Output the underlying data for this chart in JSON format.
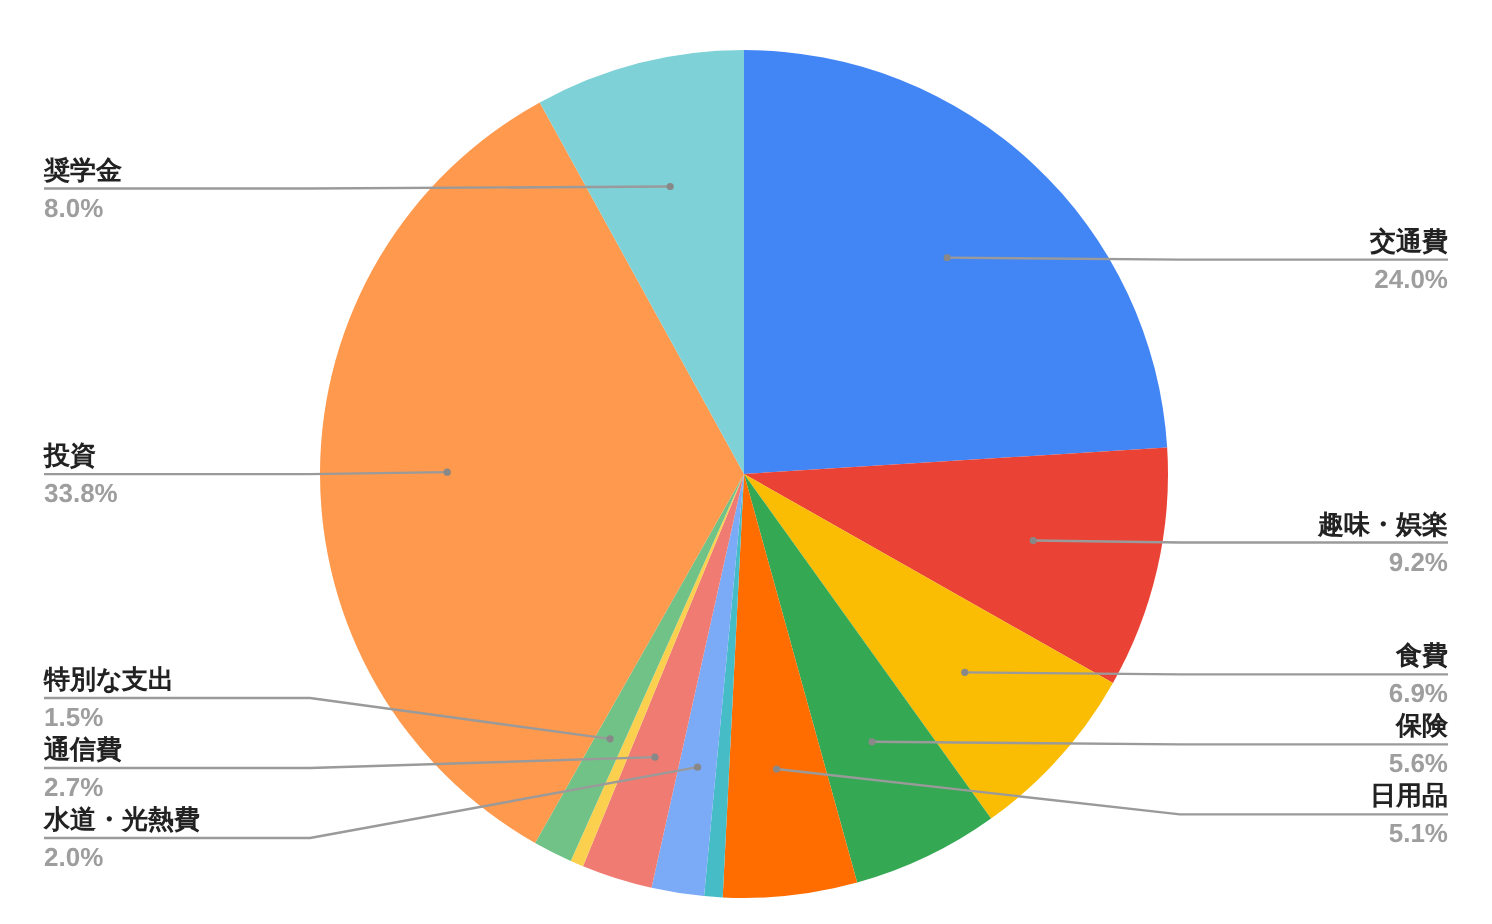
{
  "chart_data": {
    "type": "pie",
    "categories": [
      "交通費",
      "趣味・娯楽",
      "食費",
      "保険",
      "日用品",
      null,
      "水道・光熱費",
      "通信費",
      null,
      "特別な支出",
      "投資",
      "奨学金"
    ],
    "values": [
      24.0,
      9.2,
      6.9,
      5.6,
      5.1,
      0.7,
      2.0,
      2.7,
      0.5,
      1.5,
      33.8,
      8.0
    ],
    "value_labels": [
      "24.0%",
      "9.2%",
      "6.9%",
      "5.6%",
      "5.1%",
      null,
      "2.0%",
      "2.7%",
      null,
      "1.5%",
      "33.8%",
      "8.0%"
    ],
    "colors": [
      "#4285f4",
      "#ea4335",
      "#fbbc04",
      "#34a853",
      "#ff6d01",
      "#46bdc6",
      "#7baaf7",
      "#f07b72",
      "#fcd04f",
      "#71c287",
      "#ff994d",
      "#7ed1d7"
    ]
  }
}
